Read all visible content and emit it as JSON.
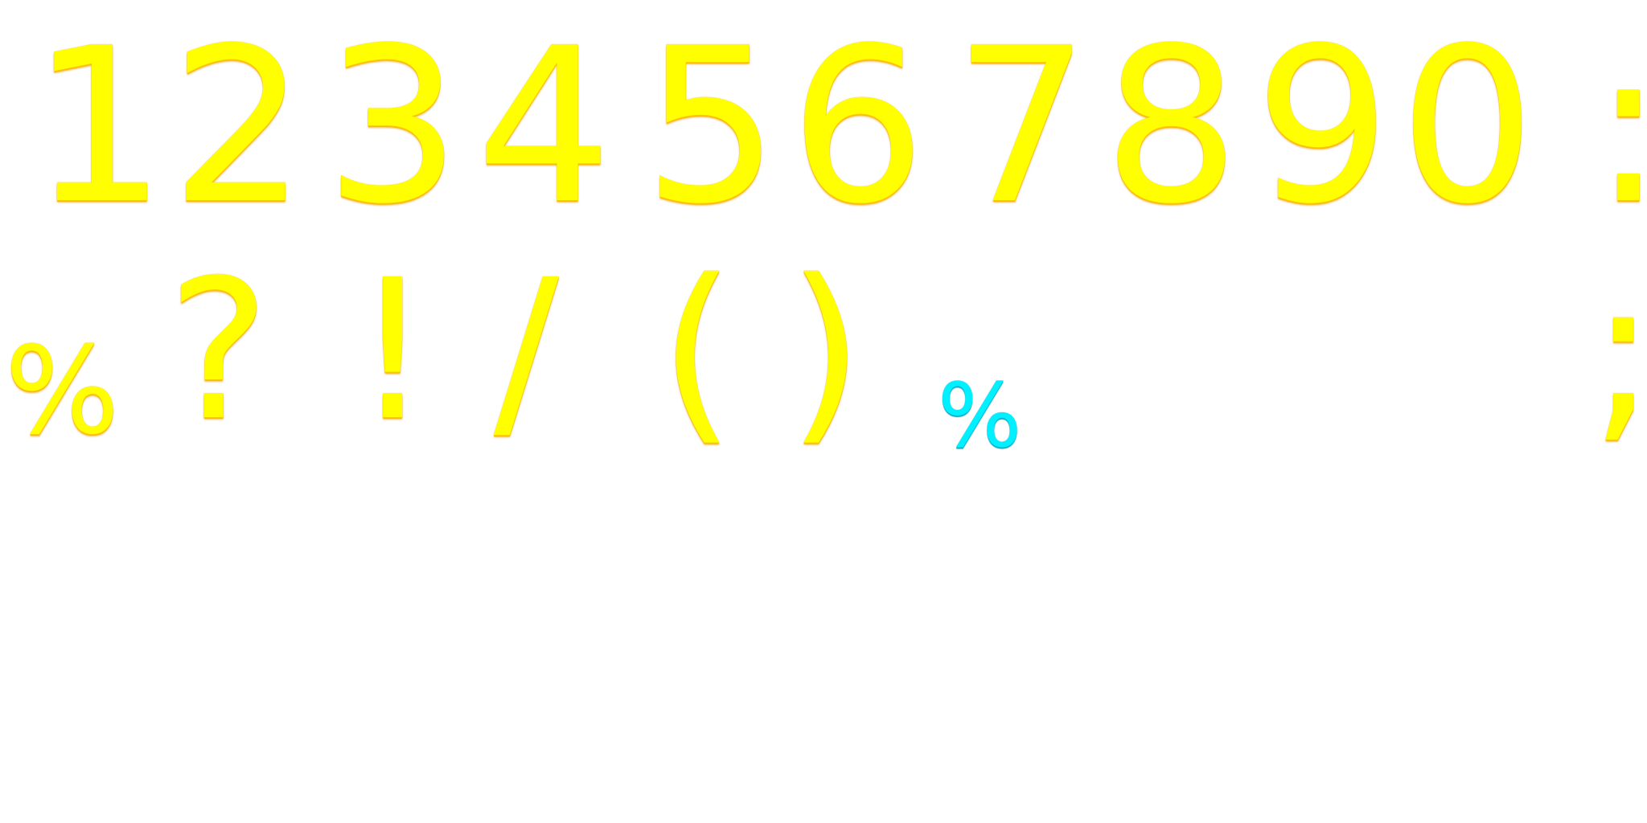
{
  "glyph_sheet": {
    "row1": [
      "1",
      "2",
      "3",
      "4",
      "5",
      "6",
      "7",
      "8",
      "9",
      "0",
      ":"
    ],
    "row2": [
      "%",
      "?",
      "!",
      "/",
      "(",
      ")",
      "%",
      ";"
    ],
    "colors": {
      "primary": "#ffff00",
      "primary_shade": "#ffb300",
      "accent": "#00f0ff",
      "background": "#ffffff"
    }
  }
}
